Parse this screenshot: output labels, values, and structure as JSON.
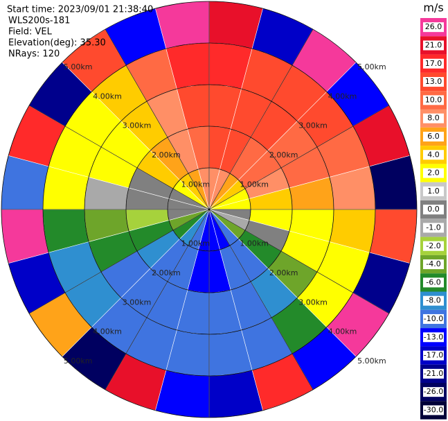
{
  "chart_data": {
    "type": "ppi",
    "annotations": [
      "Start time: 2023/09/01 21:38:40",
      "WLS200s-181",
      "Field: VEL",
      "Elevation(deg): 35.30",
      "NRays: 120"
    ],
    "rlim": [
      0,
      5
    ],
    "rticks": [
      {
        "value": 1,
        "label": "1.00km"
      },
      {
        "value": 2,
        "label": "2.00km"
      },
      {
        "value": 3,
        "label": "3.00km"
      },
      {
        "value": 4,
        "label": "4.00km"
      },
      {
        "value": 5,
        "label": "5.00km"
      }
    ],
    "azimuth_bins": [
      0,
      15,
      30,
      45,
      60,
      75,
      90,
      105,
      120,
      135,
      150,
      165,
      180,
      195,
      210,
      225,
      240,
      255,
      270,
      285,
      300,
      315,
      330,
      345,
      360
    ],
    "range_bins": [
      0,
      1,
      2,
      3,
      4,
      5
    ],
    "values": [
      [
        8,
        13,
        13,
        17,
        21
      ],
      [
        8,
        13,
        13,
        13,
        -17
      ],
      [
        6,
        10,
        13,
        13,
        26
      ],
      [
        4,
        10,
        10,
        13,
        -13
      ],
      [
        2,
        8,
        10,
        10,
        21
      ],
      [
        2,
        4,
        6,
        8,
        -26
      ],
      [
        0,
        2,
        2,
        4,
        13
      ],
      [
        -1,
        0,
        2,
        2,
        -21
      ],
      [
        -4,
        -6,
        -4,
        2,
        26
      ],
      [
        -10,
        -10,
        -8,
        -6,
        -13
      ],
      [
        -13,
        -10,
        -10,
        -10,
        17
      ],
      [
        -13,
        -13,
        -10,
        -10,
        -17
      ],
      [
        -13,
        -13,
        -10,
        -10,
        -13
      ],
      [
        -10,
        -10,
        -10,
        -10,
        21
      ],
      [
        -8,
        -10,
        -10,
        -10,
        -26
      ],
      [
        -6,
        -8,
        -10,
        -8,
        6
      ],
      [
        -4,
        -6,
        -6,
        -8,
        -17
      ],
      [
        0,
        -2,
        -4,
        -6,
        26
      ],
      [
        0,
        0,
        -1,
        2,
        -10
      ],
      [
        0,
        0,
        2,
        2,
        17
      ],
      [
        2,
        4,
        2,
        2,
        -21
      ],
      [
        4,
        6,
        4,
        4,
        13
      ],
      [
        6,
        8,
        8,
        10,
        -13
      ],
      [
        8,
        10,
        13,
        17,
        26
      ]
    ],
    "colorbar": {
      "title": "m/s",
      "ticks": [
        {
          "value": 26,
          "label": "26.0"
        },
        {
          "value": 21,
          "label": "21.0"
        },
        {
          "value": 17,
          "label": "17.0"
        },
        {
          "value": 13,
          "label": "13.0"
        },
        {
          "value": 10,
          "label": "10.0"
        },
        {
          "value": 8,
          "label": "8.0"
        },
        {
          "value": 6,
          "label": "6.0"
        },
        {
          "value": 4,
          "label": "4.0"
        },
        {
          "value": 2,
          "label": "2.0"
        },
        {
          "value": 1,
          "label": "1.0"
        },
        {
          "value": 0,
          "label": "0.0"
        },
        {
          "value": -1,
          "label": "-1.0"
        },
        {
          "value": -2,
          "label": "-2.0"
        },
        {
          "value": -4,
          "label": "-4.0"
        },
        {
          "value": -6,
          "label": "-6.0"
        },
        {
          "value": -8,
          "label": "-8.0"
        },
        {
          "value": -10,
          "label": "-10.0"
        },
        {
          "value": -13,
          "label": "-13.0"
        },
        {
          "value": -17,
          "label": "-17.0"
        },
        {
          "value": -21,
          "label": "-21.0"
        },
        {
          "value": -26,
          "label": "-26.0"
        },
        {
          "value": -30,
          "label": "-30.0"
        }
      ],
      "colors": [
        "#f5399b",
        "#e8102a",
        "#ff2a2a",
        "#ff4a2e",
        "#ff6a44",
        "#ff8f66",
        "#ffa319",
        "#ffcc00",
        "#ffff00",
        "#c8c8c8",
        "#808080",
        "#a9a9a9",
        "#a6d23c",
        "#6ea52a",
        "#238a2a",
        "#2f8fd0",
        "#3f74e0",
        "#0000ff",
        "#0000c8",
        "#00008c",
        "#000060",
        "#000038"
      ]
    }
  }
}
